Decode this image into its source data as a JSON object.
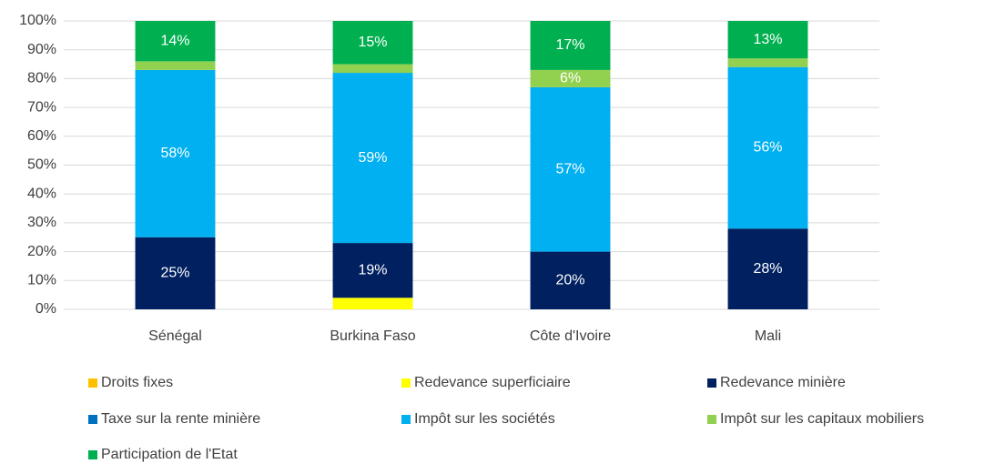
{
  "chart_data": {
    "type": "stacked_bar",
    "categories": [
      "Sénégal",
      "Burkina Faso",
      "Côte d'Ivoire",
      "Mali"
    ],
    "series": [
      {
        "name": "Droits fixes",
        "color": "#FFC000",
        "values": [
          0,
          0,
          0,
          0
        ],
        "value_labels": [
          null,
          null,
          null,
          null
        ]
      },
      {
        "name": "Redevance superficiaire",
        "color": "#FFFF00",
        "values": [
          0,
          4,
          0,
          0
        ],
        "value_labels": [
          null,
          null,
          null,
          null
        ]
      },
      {
        "name": "Redevance minière",
        "color": "#002060",
        "values": [
          25,
          19,
          20,
          28
        ],
        "value_labels": [
          "25%",
          "19%",
          "20%",
          "28%"
        ]
      },
      {
        "name": "Taxe sur la rente minière",
        "color": "#0070C0",
        "values": [
          0,
          0,
          0,
          0
        ],
        "value_labels": [
          null,
          null,
          null,
          null
        ]
      },
      {
        "name": "Impôt sur les sociétés",
        "color": "#00B0F0",
        "values": [
          58,
          59,
          57,
          56
        ],
        "value_labels": [
          "58%",
          "59%",
          "57%",
          "56%"
        ]
      },
      {
        "name": "Impôt sur les capitaux mobiliers",
        "color": "#92D050",
        "values": [
          3,
          3,
          6,
          3
        ],
        "value_labels": [
          null,
          null,
          "6%",
          null
        ]
      },
      {
        "name": "Participation de l'Etat",
        "color": "#00B050",
        "values": [
          14,
          15,
          17,
          13
        ],
        "value_labels": [
          "14%",
          "15%",
          "17%",
          "13%"
        ]
      }
    ],
    "ylim": [
      0,
      100
    ],
    "yticks": [
      {
        "value": 0,
        "label": "0%"
      },
      {
        "value": 10,
        "label": "10%"
      },
      {
        "value": 20,
        "label": "20%"
      },
      {
        "value": 30,
        "label": "30%"
      },
      {
        "value": 40,
        "label": "40%"
      },
      {
        "value": 50,
        "label": "50%"
      },
      {
        "value": 60,
        "label": "60%"
      },
      {
        "value": 70,
        "label": "70%"
      },
      {
        "value": 80,
        "label": "80%"
      },
      {
        "value": 90,
        "label": "90%"
      },
      {
        "value": 100,
        "label": "100%"
      }
    ],
    "grid": true,
    "legend": "bottom"
  }
}
